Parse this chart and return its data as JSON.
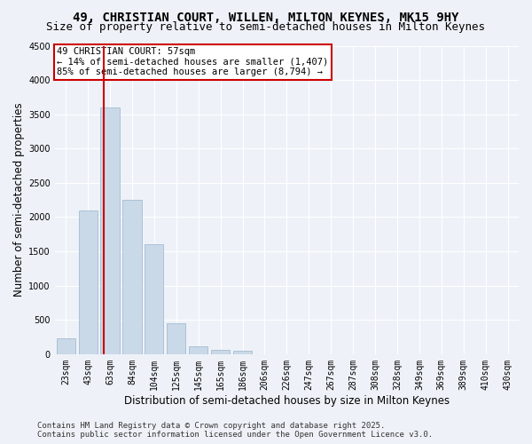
{
  "title_line1": "49, CHRISTIAN COURT, WILLEN, MILTON KEYNES, MK15 9HY",
  "title_line2": "Size of property relative to semi-detached houses in Milton Keynes",
  "xlabel": "Distribution of semi-detached houses by size in Milton Keynes",
  "ylabel": "Number of semi-detached properties",
  "categories": [
    "23sqm",
    "43sqm",
    "63sqm",
    "84sqm",
    "104sqm",
    "125sqm",
    "145sqm",
    "165sqm",
    "186sqm",
    "206sqm",
    "226sqm",
    "247sqm",
    "267sqm",
    "287sqm",
    "308sqm",
    "328sqm",
    "349sqm",
    "369sqm",
    "389sqm",
    "410sqm",
    "430sqm"
  ],
  "values": [
    230,
    2100,
    3600,
    2250,
    1600,
    450,
    120,
    60,
    50,
    0,
    0,
    0,
    0,
    0,
    0,
    0,
    0,
    0,
    0,
    0,
    0
  ],
  "bar_color": "#c9d9e8",
  "bar_edge_color": "#9ab4cc",
  "vline_color": "#cc0000",
  "vline_x": 1.72,
  "annotation_title": "49 CHRISTIAN COURT: 57sqm",
  "annotation_line2": "← 14% of semi-detached houses are smaller (1,407)",
  "annotation_line3": "85% of semi-detached houses are larger (8,794) →",
  "annotation_box_color": "#cc0000",
  "ylim": [
    0,
    4500
  ],
  "yticks": [
    0,
    500,
    1000,
    1500,
    2000,
    2500,
    3000,
    3500,
    4000,
    4500
  ],
  "footer_line1": "Contains HM Land Registry data © Crown copyright and database right 2025.",
  "footer_line2": "Contains public sector information licensed under the Open Government Licence v3.0.",
  "bg_color": "#eef2f8",
  "plot_bg_color": "#eef2f8",
  "grid_color": "#ffffff",
  "title_fontsize": 10,
  "subtitle_fontsize": 9,
  "axis_label_fontsize": 8.5,
  "tick_fontsize": 7,
  "footer_fontsize": 6.5,
  "annotation_fontsize": 7.5
}
